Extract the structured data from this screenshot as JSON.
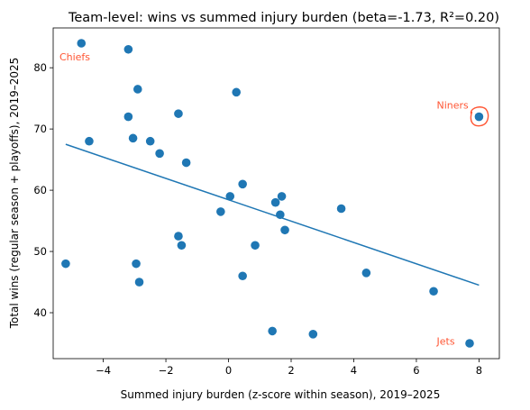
{
  "chart_data": {
    "type": "scatter",
    "title": "Team-level: wins vs summed injury burden (beta=-1.73, R²=0.20)",
    "xlabel": "Summed injury burden (z-score within season), 2019–2025",
    "ylabel": "Total wins (regular season + playoffs), 2019–2025",
    "xlim": [
      -5.6,
      8.65
    ],
    "ylim": [
      32.5,
      86.5
    ],
    "x_ticks": [
      -4,
      -2,
      0,
      2,
      4,
      6,
      8
    ],
    "y_ticks": [
      40,
      50,
      60,
      70,
      80
    ],
    "grid": false,
    "point_color": "#1f77b4",
    "points": [
      {
        "x": -4.7,
        "y": 84
      },
      {
        "x": -3.2,
        "y": 83
      },
      {
        "x": -2.9,
        "y": 76.5
      },
      {
        "x": 0.25,
        "y": 76
      },
      {
        "x": -3.2,
        "y": 72
      },
      {
        "x": -1.6,
        "y": 72.5
      },
      {
        "x": 8.0,
        "y": 72
      },
      {
        "x": -3.05,
        "y": 68.5
      },
      {
        "x": -4.45,
        "y": 68
      },
      {
        "x": -2.5,
        "y": 68
      },
      {
        "x": -2.2,
        "y": 66
      },
      {
        "x": -1.35,
        "y": 64.5
      },
      {
        "x": 0.45,
        "y": 61
      },
      {
        "x": 0.05,
        "y": 59
      },
      {
        "x": 1.7,
        "y": 59
      },
      {
        "x": 1.5,
        "y": 58
      },
      {
        "x": 3.6,
        "y": 57
      },
      {
        "x": -0.25,
        "y": 56.5
      },
      {
        "x": 1.65,
        "y": 56
      },
      {
        "x": 1.8,
        "y": 53.5
      },
      {
        "x": -1.6,
        "y": 52.5
      },
      {
        "x": -1.5,
        "y": 51
      },
      {
        "x": 0.85,
        "y": 51
      },
      {
        "x": -5.2,
        "y": 48
      },
      {
        "x": -2.95,
        "y": 48
      },
      {
        "x": 4.4,
        "y": 46.5
      },
      {
        "x": 0.45,
        "y": 46
      },
      {
        "x": -2.85,
        "y": 45
      },
      {
        "x": 6.55,
        "y": 43.5
      },
      {
        "x": 1.4,
        "y": 37
      },
      {
        "x": 2.7,
        "y": 36.5
      },
      {
        "x": 7.7,
        "y": 35
      }
    ],
    "regression": {
      "line_color": "#1f77b4",
      "x_start": -5.2,
      "y_start": 67.5,
      "x_end": 8.0,
      "y_end": 44.5
    },
    "annotations": [
      {
        "text": "Chiefs",
        "x": -5.4,
        "y": 81.2,
        "color": "#ff5533"
      },
      {
        "text": "Niners",
        "x": 6.65,
        "y": 73.3,
        "color": "#ff5533"
      },
      {
        "text": "Jets",
        "x": 6.65,
        "y": 34.8,
        "color": "#ff5533"
      }
    ],
    "highlight": {
      "x": 8.0,
      "y": 72,
      "color": "#ff5533"
    }
  }
}
